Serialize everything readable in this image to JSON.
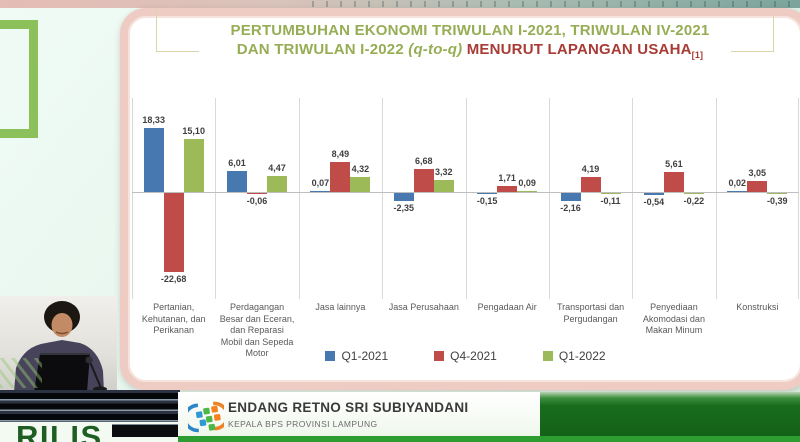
{
  "title": {
    "line1": "PERTUMBUHAN EKONOMI TRIWULAN I-2021, TRIWULAN IV-2021",
    "line2_green": "DAN TRIWULAN I-2022 ",
    "line2_qtoq": "(q-to-q)",
    "line2_red": " MENURUT LAPANGAN USAHA",
    "line2_footnote": "[1]"
  },
  "chart_data": {
    "type": "bar",
    "title": "Pertumbuhan Ekonomi Triwulan I-2021, Triwulan IV-2021 dan Triwulan I-2022 (q-to-q) Menurut Lapangan Usaha",
    "categories": [
      "Pertanian, Kehutanan, dan Perikanan",
      "Perdagangan Besar dan Eceran, dan Reparasi Mobil dan Sepeda Motor",
      "Jasa lainnya",
      "Jasa Perusahaan",
      "Pengadaan Air",
      "Transportasi dan Pergudangan",
      "Penyediaan Akomodasi dan Makan Minum",
      "Konstruksi"
    ],
    "series": [
      {
        "name": "Q1-2021",
        "color": "#4878b0",
        "values": [
          18.33,
          6.01,
          0.07,
          -2.35,
          -0.15,
          -2.16,
          -0.54,
          0.02
        ]
      },
      {
        "name": "Q4-2021",
        "color": "#bf4c48",
        "values": [
          -22.68,
          -0.06,
          8.49,
          6.68,
          1.71,
          4.19,
          5.61,
          3.05
        ]
      },
      {
        "name": "Q1-2022",
        "color": "#9cba57",
        "values": [
          15.1,
          4.47,
          4.32,
          3.32,
          0.09,
          -0.11,
          -0.22,
          -0.39
        ]
      }
    ],
    "ylim": [
      -25,
      20
    ],
    "decimal_separator": ",",
    "grid": "vertical category separators only",
    "legend_position": "bottom",
    "value_labels": "shown on each bar"
  },
  "footer": {
    "speaker_name": "ENDANG RETNO SRI SUBIYANDANI",
    "speaker_title": "KEPALA BPS PROVINSI LAMPUNG",
    "logo": "bps-logo"
  },
  "overlay": {
    "watermark": "RILIS"
  },
  "colors": {
    "title_green": "#97ad55",
    "title_red": "#a93b35",
    "bar_blue": "#4878b0",
    "bar_red": "#bf4c48",
    "bar_green": "#9cba57",
    "card_border_pink": "#eeccc4",
    "accent_square_green": "#8cc05a",
    "footer_green_block": "#176c1b",
    "footer_green_strip": "#2d9c31",
    "watermark_green": "#1e5e22"
  }
}
